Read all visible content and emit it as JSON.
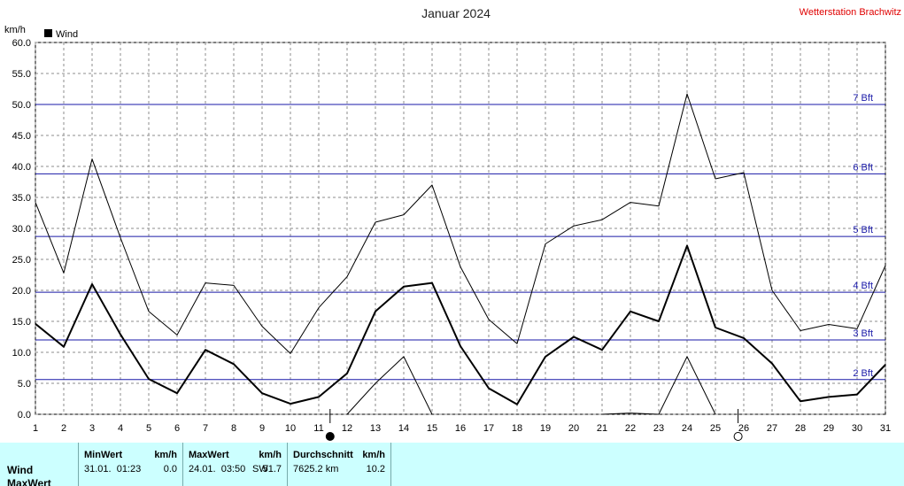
{
  "header": {
    "title": "Januar 2024",
    "station": "Wetterstation Brachwitz",
    "y_unit": "km/h",
    "legend_label": "Wind",
    "legend_color": "#000000"
  },
  "chart_data": {
    "type": "line",
    "title": "Januar 2024",
    "xlabel": "",
    "ylabel": "km/h",
    "x": [
      1,
      2,
      3,
      4,
      5,
      6,
      7,
      8,
      9,
      10,
      11,
      12,
      13,
      14,
      15,
      16,
      17,
      18,
      19,
      20,
      21,
      22,
      23,
      24,
      25,
      26,
      27,
      28,
      29,
      30,
      31
    ],
    "xlim": [
      1,
      31
    ],
    "ylim": [
      0,
      60
    ],
    "y_ticks": [
      "0.0",
      "5.0",
      "10.0",
      "15.0",
      "20.0",
      "25.0",
      "30.0",
      "35.0",
      "40.0",
      "45.0",
      "50.0",
      "55.0",
      "60.0"
    ],
    "grid": true,
    "legend": "top-left",
    "series": [
      {
        "name": "Wind",
        "color": "#000000",
        "values": [
          14.6,
          10.9,
          21.0,
          12.9,
          5.7,
          3.4,
          10.4,
          8.1,
          3.4,
          1.7,
          2.8,
          6.6,
          16.6,
          20.6,
          21.2,
          11.0,
          4.2,
          1.6,
          9.3,
          12.5,
          10.4,
          16.6,
          15.0,
          27.2,
          14.0,
          12.3,
          8.2,
          2.1,
          2.8,
          3.2,
          8.0
        ]
      },
      {
        "color": "#000000",
        "values": [
          34.2,
          22.8,
          41.2,
          28.5,
          16.6,
          12.8,
          21.2,
          20.8,
          14.2,
          9.8,
          17.2,
          22.2,
          31.0,
          32.2,
          37.0,
          23.8,
          15.3,
          11.4,
          27.5,
          30.4,
          31.4,
          34.2,
          33.6,
          51.7,
          38.0,
          39.0,
          20.0,
          13.5,
          14.5,
          13.8,
          24.0
        ]
      },
      {
        "color": "#000000",
        "values": [
          null,
          null,
          null,
          null,
          null,
          null,
          null,
          null,
          null,
          null,
          null,
          0,
          5.0,
          9.3,
          0,
          null,
          null,
          null,
          null,
          null,
          0,
          0.2,
          0,
          9.3,
          0,
          null,
          null,
          null,
          null,
          null,
          null
        ]
      }
    ],
    "beaufort_lines": [
      {
        "label": "2 Bft",
        "value": 5.6,
        "color": "#1a1aa8"
      },
      {
        "label": "3 Bft",
        "value": 12.0,
        "color": "#1a1aa8"
      },
      {
        "label": "4 Bft",
        "value": 19.7,
        "color": "#1a1aa8"
      },
      {
        "label": "5 Bft",
        "value": 28.7,
        "color": "#1a1aa8"
      },
      {
        "label": "6 Bft",
        "value": 38.8,
        "color": "#1a1aa8"
      },
      {
        "label": "7 Bft",
        "value": 50.0,
        "color": "#1a1aa8"
      }
    ],
    "moon_phases": [
      {
        "day": 11.4,
        "phase": "new"
      },
      {
        "day": 25.8,
        "phase": "full"
      }
    ]
  },
  "stats": {
    "row_labels": [
      "Wind",
      "MaxWert"
    ],
    "min": {
      "header": "MinWert",
      "unit": "km/h",
      "datetime": "31.01.  01:23",
      "value": "0.0"
    },
    "max": {
      "header": "MaxWert",
      "unit": "km/h",
      "datetime": "24.01.  03:50",
      "direction": "SW",
      "value": "51.7"
    },
    "avg": {
      "header": "Durchschnitt",
      "unit": "km/h",
      "distance": "7625.2 km",
      "value": "10.2"
    }
  }
}
